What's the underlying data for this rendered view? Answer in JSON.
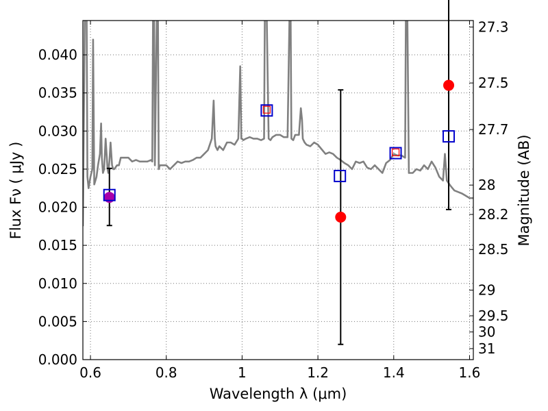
{
  "chart_data": {
    "type": "line",
    "title": "",
    "xlabel": "Wavelength  λ (μm)",
    "ylabel": "Flux  Fν  ( μJy )",
    "y2label": "Magnitude (AB)",
    "xlim": [
      0.58,
      1.61
    ],
    "ylim": [
      0.0,
      0.0445
    ],
    "grid": true,
    "xticks": [
      "0.6",
      "0.8",
      "1",
      "1.2",
      "1.4",
      "1.6"
    ],
    "yticks": [
      "0.000",
      "0.005",
      "0.010",
      "0.015",
      "0.020",
      "0.025",
      "0.030",
      "0.035",
      "0.040"
    ],
    "mag_ticks": [
      "27.3",
      "27.5",
      "27.7",
      "28",
      "28.2",
      "28.5",
      "29",
      "29.5",
      "30",
      "31"
    ],
    "colors": {
      "spectrum": "#808080",
      "observed": "#ff0000",
      "model": "#0000cc",
      "errorbar": "#000000",
      "observed_overlap": "#aa00aa"
    },
    "series": [
      {
        "type": "line",
        "x": [
          0.58,
          0.585,
          0.59,
          0.592,
          0.595,
          0.6,
          0.605,
          0.607,
          0.61,
          0.613,
          0.616,
          0.62,
          0.625,
          0.628,
          0.63,
          0.633,
          0.636,
          0.64,
          0.645,
          0.647,
          0.65,
          0.653,
          0.657,
          0.66,
          0.663,
          0.67,
          0.675,
          0.68,
          0.685,
          0.69,
          0.695,
          0.7,
          0.71,
          0.72,
          0.73,
          0.74,
          0.75,
          0.76,
          0.763,
          0.765,
          0.768,
          0.77,
          0.775,
          0.778,
          0.78,
          0.783,
          0.79,
          0.8,
          0.81,
          0.82,
          0.83,
          0.84,
          0.85,
          0.86,
          0.87,
          0.88,
          0.89,
          0.9,
          0.91,
          0.92,
          0.925,
          0.928,
          0.93,
          0.935,
          0.94,
          0.95,
          0.96,
          0.97,
          0.98,
          0.99,
          0.995,
          0.998,
          1.0,
          1.003,
          1.01,
          1.02,
          1.03,
          1.04,
          1.05,
          1.058,
          1.06,
          1.065,
          1.07,
          1.075,
          1.08,
          1.09,
          1.1,
          1.11,
          1.12,
          1.125,
          1.128,
          1.13,
          1.135,
          1.14,
          1.15,
          1.155,
          1.158,
          1.16,
          1.165,
          1.17,
          1.18,
          1.19,
          1.2,
          1.21,
          1.22,
          1.23,
          1.24,
          1.25,
          1.26,
          1.27,
          1.28,
          1.29,
          1.3,
          1.31,
          1.32,
          1.33,
          1.34,
          1.35,
          1.36,
          1.37,
          1.38,
          1.39,
          1.4,
          1.41,
          1.42,
          1.43,
          1.432,
          1.436,
          1.44,
          1.45,
          1.46,
          1.47,
          1.48,
          1.49,
          1.5,
          1.51,
          1.52,
          1.53,
          1.535,
          1.54,
          1.55,
          1.56,
          1.57,
          1.58,
          1.59,
          1.6,
          1.61
        ],
        "y": [
          0.0175,
          0.045,
          0.045,
          0.024,
          0.0225,
          0.024,
          0.025,
          0.042,
          0.023,
          0.0235,
          0.024,
          0.0255,
          0.027,
          0.031,
          0.0265,
          0.0245,
          0.025,
          0.029,
          0.025,
          0.0245,
          0.026,
          0.0285,
          0.0255,
          0.025,
          0.025,
          0.0255,
          0.0255,
          0.0265,
          0.0265,
          0.0265,
          0.0265,
          0.0265,
          0.026,
          0.0262,
          0.026,
          0.026,
          0.026,
          0.0262,
          0.026,
          0.045,
          0.045,
          0.0255,
          0.045,
          0.045,
          0.025,
          0.0255,
          0.0255,
          0.0255,
          0.025,
          0.0255,
          0.026,
          0.0258,
          0.026,
          0.026,
          0.0262,
          0.0265,
          0.0265,
          0.027,
          0.0275,
          0.029,
          0.034,
          0.029,
          0.028,
          0.0275,
          0.028,
          0.0275,
          0.0285,
          0.0285,
          0.0282,
          0.029,
          0.0385,
          0.029,
          0.029,
          0.0288,
          0.029,
          0.0292,
          0.029,
          0.029,
          0.0288,
          0.029,
          0.045,
          0.045,
          0.029,
          0.0288,
          0.0292,
          0.0295,
          0.0295,
          0.0292,
          0.0292,
          0.045,
          0.045,
          0.029,
          0.0288,
          0.0295,
          0.0295,
          0.033,
          0.0315,
          0.029,
          0.0285,
          0.0282,
          0.028,
          0.0285,
          0.0282,
          0.0276,
          0.027,
          0.0272,
          0.027,
          0.0265,
          0.0262,
          0.0258,
          0.0255,
          0.025,
          0.026,
          0.0258,
          0.026,
          0.0252,
          0.025,
          0.0255,
          0.025,
          0.0245,
          0.0258,
          0.0262,
          0.027,
          0.0268,
          0.0268,
          0.0265,
          0.045,
          0.045,
          0.0245,
          0.0245,
          0.025,
          0.0248,
          0.0255,
          0.025,
          0.026,
          0.0252,
          0.024,
          0.0235,
          0.027,
          0.0235,
          0.0228,
          0.0222,
          0.022,
          0.0218,
          0.0215,
          0.0212,
          0.0212
        ]
      },
      {
        "type": "scatter",
        "x": [
          0.65,
          1.26,
          1.545
        ],
        "y": [
          0.0213,
          0.0187,
          0.036
        ],
        "yerr": [
          [
            0.0037,
            0.0167,
            0.0163
          ],
          [
            0.0038,
            0.0167,
            0.0163
          ]
        ]
      },
      {
        "type": "scatter",
        "marker": "square",
        "x": [
          0.65,
          1.065,
          1.258,
          1.405,
          1.545
        ],
        "y": [
          0.0216,
          0.0327,
          0.0241,
          0.0271,
          0.0293
        ]
      },
      {
        "type": "scatter",
        "marker": "small-square",
        "x": [
          1.065,
          1.405
        ],
        "y": [
          0.0328,
          0.0272
        ]
      }
    ]
  }
}
